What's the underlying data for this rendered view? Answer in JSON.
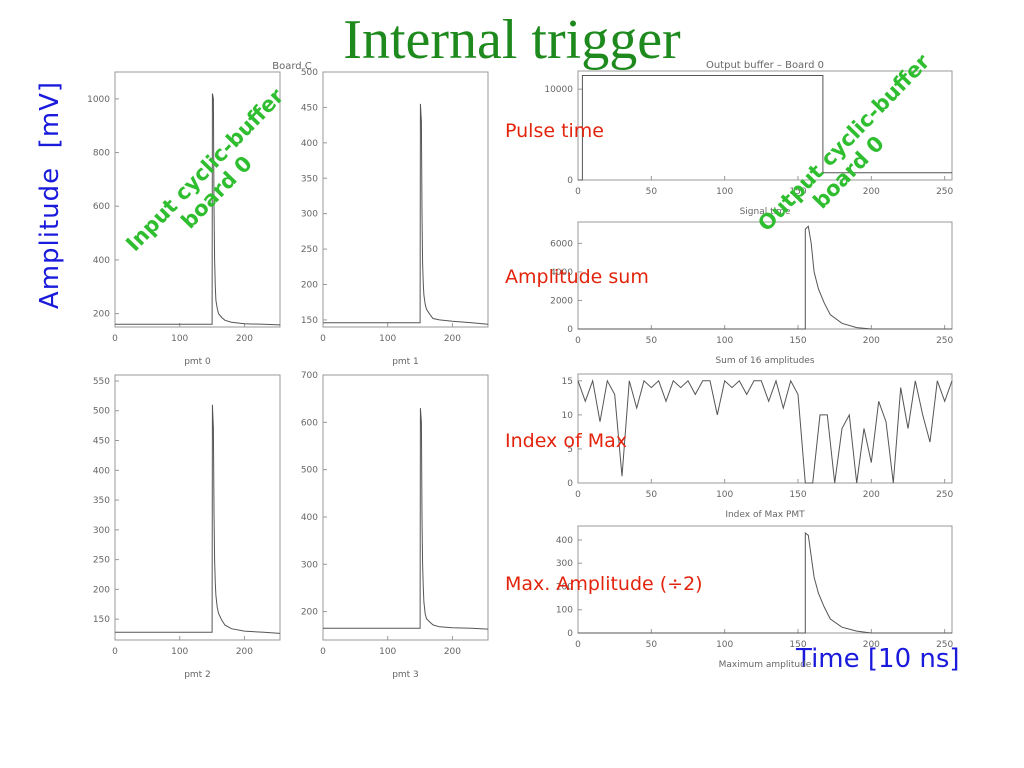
{
  "slide": {
    "title": "Internal trigger",
    "y_axis_title": "Amplitude  [mV]",
    "x_axis_title": "Time [10 ns]",
    "input_note": [
      "Input cyclic-buffer",
      "board 0"
    ],
    "output_note": [
      "Output cyclic-buffer",
      "board 0"
    ],
    "labels": {
      "pulse_time": "Pulse time",
      "amplitude_sum": "Amplitude sum",
      "index_of_max": "Index of Max",
      "max_amplitude": "Max. Amplitude (÷2)"
    }
  },
  "colors": {
    "title": "#1e8a1e",
    "axis_titles": "#1a1adc",
    "notes": "#2fbe2f",
    "labels": "#e3240d",
    "trace": "#555555"
  },
  "chart_data": [
    {
      "type": "line",
      "id": "pmt0",
      "title": "Board C",
      "xlabel": "pmt 0",
      "xlim": [
        0,
        255
      ],
      "ylim": [
        150,
        1100
      ],
      "xticks": [
        0,
        100,
        200
      ],
      "yticks": [
        200,
        400,
        600,
        800,
        1000
      ],
      "x": [
        0,
        150,
        150.5,
        152,
        153,
        154,
        155,
        156,
        158,
        160,
        165,
        170,
        180,
        200,
        230,
        255
      ],
      "y": [
        160,
        160,
        1020,
        1000,
        600,
        400,
        300,
        250,
        220,
        200,
        185,
        175,
        168,
        162,
        160,
        158
      ]
    },
    {
      "type": "line",
      "id": "pmt1",
      "xlabel": "pmt 1",
      "xlim": [
        0,
        255
      ],
      "ylim": [
        140,
        500
      ],
      "xticks": [
        0,
        100,
        200
      ],
      "yticks": [
        150,
        200,
        250,
        300,
        350,
        400,
        450,
        500
      ],
      "x": [
        0,
        150,
        150.5,
        152,
        153,
        154,
        155,
        156,
        158,
        160,
        165,
        170,
        180,
        200,
        230,
        255
      ],
      "y": [
        146,
        146,
        455,
        430,
        300,
        230,
        200,
        185,
        172,
        165,
        158,
        152,
        150,
        148,
        146,
        144
      ]
    },
    {
      "type": "line",
      "id": "pmt2",
      "xlabel": "pmt 2",
      "xlim": [
        0,
        255
      ],
      "ylim": [
        115,
        560
      ],
      "xticks": [
        0,
        100,
        200
      ],
      "yticks": [
        150,
        200,
        250,
        300,
        350,
        400,
        450,
        500,
        550
      ],
      "x": [
        0,
        150,
        150.5,
        152,
        153,
        154,
        155,
        156,
        158,
        160,
        165,
        170,
        180,
        200,
        230,
        255
      ],
      "y": [
        128,
        128,
        510,
        470,
        330,
        250,
        210,
        190,
        170,
        160,
        148,
        140,
        134,
        130,
        128,
        126
      ]
    },
    {
      "type": "line",
      "id": "pmt3",
      "xlabel": "pmt 3",
      "xlim": [
        0,
        255
      ],
      "ylim": [
        140,
        700
      ],
      "xticks": [
        0,
        100,
        200
      ],
      "yticks": [
        200,
        300,
        400,
        500,
        600,
        700
      ],
      "x": [
        0,
        150,
        150.5,
        152,
        153,
        154,
        155,
        156,
        158,
        160,
        165,
        170,
        180,
        200,
        230,
        255
      ],
      "y": [
        165,
        165,
        630,
        600,
        400,
        300,
        250,
        220,
        195,
        185,
        178,
        172,
        168,
        166,
        165,
        163
      ]
    },
    {
      "type": "line",
      "id": "signal-time",
      "title": "Output buffer – Board 0",
      "xlabel": "Signal time",
      "xlim": [
        0,
        255
      ],
      "ylim": [
        0,
        12000
      ],
      "xticks": [
        0,
        50,
        100,
        150,
        200,
        250
      ],
      "yticks": [
        0,
        10000
      ],
      "x": [
        0,
        3,
        3,
        167,
        167,
        255
      ],
      "y": [
        0,
        0,
        11500,
        11500,
        800,
        800
      ]
    },
    {
      "type": "line",
      "id": "amp-sum",
      "xlabel": "Sum of 16 amplitudes",
      "xlim": [
        0,
        255
      ],
      "ylim": [
        0,
        7500
      ],
      "xticks": [
        0,
        50,
        100,
        150,
        200,
        250
      ],
      "yticks": [
        0,
        2000,
        4000,
        6000
      ],
      "x": [
        0,
        155,
        155,
        157,
        159,
        161,
        164,
        168,
        172,
        180,
        190,
        200,
        255
      ],
      "y": [
        0,
        0,
        7000,
        7200,
        6000,
        4000,
        2800,
        1800,
        1000,
        400,
        100,
        0,
        0
      ]
    },
    {
      "type": "line",
      "id": "index-max",
      "xlabel": "Index of Max PMT",
      "xlim": [
        0,
        255
      ],
      "ylim": [
        0,
        16
      ],
      "xticks": [
        0,
        50,
        100,
        150,
        200,
        250
      ],
      "yticks": [
        0,
        5,
        10,
        15
      ],
      "x": [
        0,
        5,
        10,
        15,
        20,
        25,
        30,
        35,
        40,
        45,
        50,
        55,
        60,
        65,
        70,
        75,
        80,
        85,
        90,
        95,
        100,
        105,
        110,
        115,
        120,
        125,
        130,
        135,
        140,
        145,
        150,
        155,
        160,
        165,
        170,
        175,
        180,
        185,
        190,
        195,
        200,
        205,
        210,
        215,
        220,
        225,
        230,
        235,
        240,
        245,
        250,
        255
      ],
      "y": [
        15,
        12,
        15,
        9,
        15,
        13,
        1,
        15,
        11,
        15,
        14,
        15,
        12,
        15,
        14,
        15,
        13,
        15,
        15,
        10,
        15,
        14,
        15,
        13,
        15,
        15,
        12,
        15,
        11,
        15,
        13,
        0,
        0,
        10,
        10,
        0,
        8,
        10,
        0,
        8,
        3,
        12,
        9,
        0,
        14,
        8,
        15,
        10,
        6,
        15,
        12,
        15
      ]
    },
    {
      "type": "line",
      "id": "max-amp",
      "xlabel": "Maximum amplitude",
      "xlim": [
        0,
        255
      ],
      "ylim": [
        0,
        460
      ],
      "xticks": [
        0,
        50,
        100,
        150,
        200,
        250
      ],
      "yticks": [
        0,
        100,
        200,
        300,
        400
      ],
      "x": [
        0,
        155,
        155,
        157,
        159,
        161,
        164,
        168,
        172,
        180,
        190,
        200,
        255
      ],
      "y": [
        0,
        0,
        430,
        420,
        330,
        240,
        170,
        110,
        60,
        25,
        8,
        0,
        0
      ]
    }
  ]
}
